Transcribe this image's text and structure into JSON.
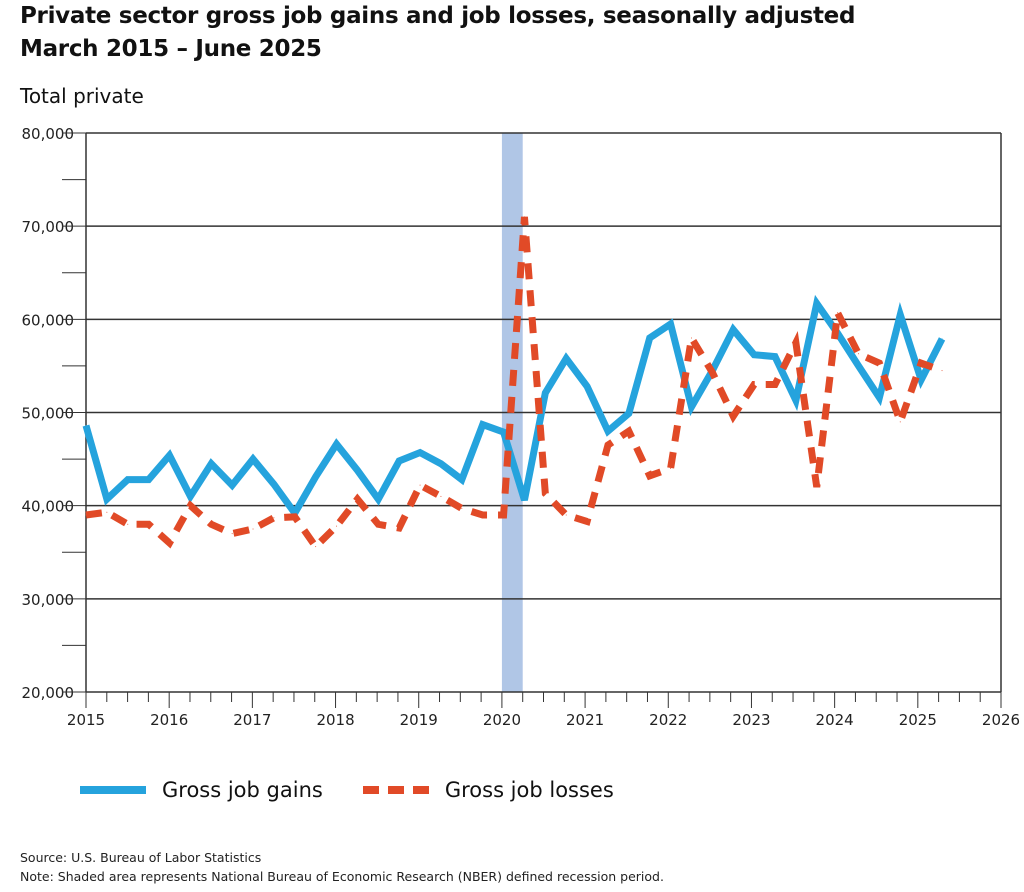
{
  "chart_data": {
    "type": "line",
    "title": "Private sector gross job gains and job losses, seasonally adjusted",
    "subtitle": "March 2015 – June 2025",
    "panel_label": "Total private",
    "x_tick_labels": [
      "2015",
      "2016",
      "2017",
      "2018",
      "2019",
      "2020",
      "2021",
      "2022",
      "2023",
      "2024",
      "2025",
      "2026"
    ],
    "y_tick_labels": [
      "20,000",
      "30,000",
      "40,000",
      "50,000",
      "60,000",
      "70,000",
      "80,000"
    ],
    "xlim": [
      2015,
      2026
    ],
    "ylim": [
      20000,
      80000
    ],
    "grid": "horizontal",
    "legend_position": "bottom",
    "recession_shading": {
      "start": 2020.0,
      "end": 2020.25
    },
    "x": [
      "Mar 2015",
      "Jun 2015",
      "Sep 2015",
      "Dec 2015",
      "Mar 2016",
      "Jun 2016",
      "Sep 2016",
      "Dec 2016",
      "Mar 2017",
      "Jun 2017",
      "Sep 2017",
      "Dec 2017",
      "Mar 2018",
      "Jun 2018",
      "Sep 2018",
      "Dec 2018",
      "Mar 2019",
      "Jun 2019",
      "Sep 2019",
      "Dec 2019",
      "Mar 2020",
      "Jun 2020",
      "Sep 2020",
      "Dec 2020",
      "Mar 2021",
      "Jun 2021",
      "Sep 2021",
      "Dec 2021",
      "Mar 2022",
      "Jun 2022",
      "Sep 2022",
      "Dec 2022",
      "Mar 2023",
      "Jun 2023",
      "Sep 2023",
      "Dec 2023",
      "Mar 2024",
      "Jun 2024",
      "Sep 2024",
      "Dec 2024",
      "Mar 2025",
      "Jun 2025"
    ],
    "series": [
      {
        "name": "Gross job gains",
        "color": "#25a3dd",
        "style": "solid",
        "values": [
          48600,
          40700,
          42800,
          42800,
          45400,
          41000,
          44500,
          42200,
          45000,
          42300,
          39200,
          43100,
          46600,
          43800,
          40700,
          44800,
          45700,
          44500,
          42800,
          48700,
          47900,
          40600,
          52100,
          55800,
          52800,
          48000,
          49900,
          58000,
          59500,
          50600,
          54500,
          58900,
          56200,
          56000,
          51300,
          61700,
          58500,
          55000,
          51600,
          60500,
          53500,
          57900
        ]
      },
      {
        "name": "Gross job losses",
        "color": "#e14a27",
        "style": "dashed",
        "values": [
          39000,
          39300,
          38000,
          38000,
          36000,
          40000,
          38000,
          37000,
          37500,
          38700,
          38800,
          35600,
          37800,
          40700,
          38000,
          37600,
          42200,
          41000,
          39700,
          39000,
          39000,
          71000,
          41300,
          39000,
          38300,
          46500,
          48000,
          43200,
          44000,
          58000,
          54300,
          49600,
          53000,
          53000,
          57500,
          42000,
          60700,
          56300,
          55300,
          49000,
          55300,
          54500
        ]
      }
    ]
  },
  "notes": {
    "source": "Source: U.S. Bureau of Labor Statistics",
    "note": "Note: Shaded area represents National Bureau of Economic Research (NBER) defined recession period."
  }
}
